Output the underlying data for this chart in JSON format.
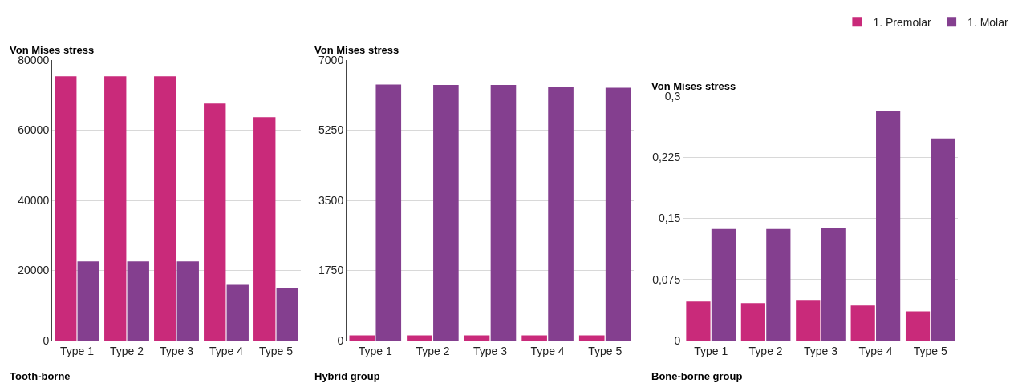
{
  "chart_data": [
    {
      "type": "bar",
      "ylabel": "Von Mises stress",
      "xlabel": "Tooth-borne",
      "categories": [
        "Type 1",
        "Type 2",
        "Type 3",
        "Type 4",
        "Type 5"
      ],
      "series": [
        {
          "color": "#c92a7a",
          "values": [
            75400,
            75400,
            75400,
            67600,
            63700
          ]
        },
        {
          "color": "#843f8f",
          "values": [
            22600,
            22600,
            22600,
            15900,
            15100
          ]
        }
      ],
      "ylim": [
        0,
        80000
      ],
      "yticks": [
        0,
        20000,
        40000,
        60000,
        80000
      ],
      "grid": "y",
      "legend": false
    },
    {
      "type": "bar",
      "ylabel": "Von Mises stress",
      "xlabel": "Hybrid group",
      "categories": [
        "Type 1",
        "Type 2",
        "Type 3",
        "Type 4",
        "Type 5"
      ],
      "series": [
        {
          "color": "#c92a7a",
          "values": [
            130,
            130,
            130,
            130,
            130
          ]
        },
        {
          "color": "#843f8f",
          "values": [
            6390,
            6380,
            6380,
            6330,
            6310
          ]
        }
      ],
      "ylim": [
        0,
        7000
      ],
      "yticks": [
        0,
        1750,
        3500,
        5250,
        7000
      ],
      "grid": "y",
      "legend": false
    },
    {
      "type": "bar",
      "ylabel": "Von Mises stress",
      "xlabel": "Bone-borne group",
      "categories": [
        "Type 1",
        "Type 2",
        "Type 3",
        "Type 4",
        "Type 5"
      ],
      "series": [
        {
          "name": "1. Premolar",
          "color": "#c92a7a",
          "values": [
            0.048,
            0.046,
            0.049,
            0.043,
            0.036
          ]
        },
        {
          "name": "1. Molar",
          "color": "#843f8f",
          "values": [
            0.137,
            0.137,
            0.138,
            0.282,
            0.248
          ]
        }
      ],
      "ylim": [
        0,
        0.3
      ],
      "yticks": [
        0,
        {
          "value": 0.075,
          "label": "0,075"
        },
        {
          "value": 0.15,
          "label": "0,15"
        },
        {
          "value": 0.225,
          "label": "0,225"
        },
        {
          "value": 0.3,
          "label": "0,3"
        }
      ],
      "grid": "y",
      "legend": "top right"
    }
  ]
}
